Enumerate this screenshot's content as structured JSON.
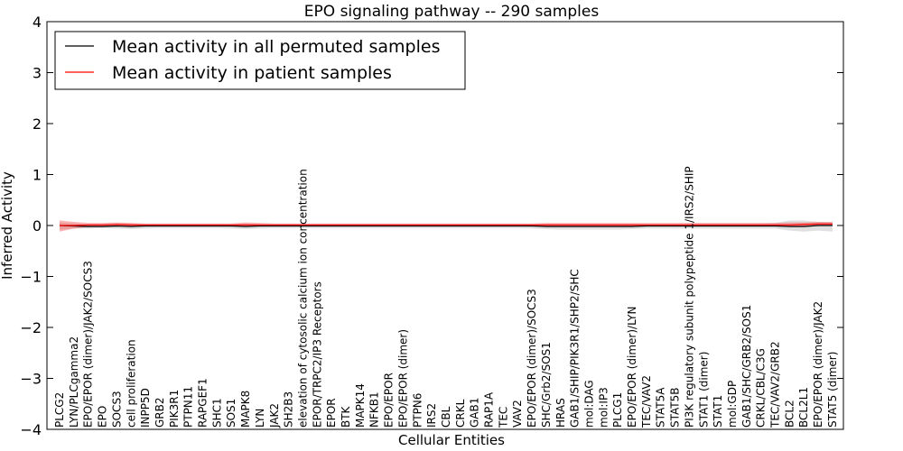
{
  "chart_data": {
    "type": "line",
    "title": "EPO signaling pathway -- 290 samples",
    "xlabel": "Cellular Entities",
    "ylabel": "Inferred Activity",
    "ylim": [
      -4,
      4
    ],
    "yticks": [
      -4,
      -3,
      -2,
      -1,
      0,
      1,
      2,
      3,
      4
    ],
    "ytick_labels": [
      "−4",
      "−3",
      "−2",
      "−1",
      "0",
      "1",
      "2",
      "3",
      "4"
    ],
    "legend_position": "top-left",
    "categories": [
      "PLCG2",
      "LYN/PLCgamma2",
      "EPO/EPOR (dimer)/JAK2/SOCS3",
      "EPO",
      "SOCS3",
      "cell proliferation",
      "INPP5D",
      "GRB2",
      "PIK3R1",
      "PTPN11",
      "RAPGEF1",
      "SHC1",
      "SOS1",
      "MAPK8",
      "LYN",
      "JAK2",
      "SH2B3",
      "elevation of cytosolic calcium ion concentration",
      "EPOR/TRPC2/IP3 Receptors",
      "EPOR",
      "BTK",
      "MAPK14",
      "NFKB1",
      "EPO/EPOR",
      "EPO/EPOR (dimer)",
      "PTPN6",
      "IRS2",
      "CBL",
      "CRKL",
      "GAB1",
      "RAP1A",
      "TEC",
      "VAV2",
      "EPO/EPOR (dimer)/SOCS3",
      "SHC/Grb2/SOS1",
      "HRAS",
      "GAB1/SHIP/PIK3R1/SHP2/SHC",
      "mol:DAG",
      "mol:IP3",
      "PLCG1",
      "EPO/EPOR (dimer)/LYN",
      "TEC/VAV2",
      "STAT5A",
      "STAT5B",
      "PI3K regulatory subunit polypeptide 1/IRS2/SHIP",
      "STAT1 (dimer)",
      "STAT1",
      "mol:GDP",
      "GAB1/SHC/GRB2/SOS1",
      "CRKL/CBL/C3G",
      "TEC/VAV2/GRB2",
      "BCL2",
      "BCL2L1",
      "EPO/EPOR (dimer)/JAK2",
      "STAT5 (dimer)"
    ],
    "series": [
      {
        "name": "Mean activity in all permuted samples",
        "color": "#000000",
        "values": [
          0,
          -0.01,
          -0.02,
          -0.02,
          -0.01,
          -0.02,
          -0.01,
          -0.01,
          -0.01,
          -0.01,
          -0.01,
          -0.01,
          -0.01,
          -0.02,
          -0.01,
          -0.01,
          -0.01,
          -0.01,
          -0.01,
          -0.01,
          -0.01,
          -0.01,
          -0.01,
          -0.01,
          -0.01,
          -0.01,
          -0.01,
          -0.01,
          -0.01,
          -0.01,
          -0.01,
          -0.01,
          -0.01,
          -0.01,
          -0.02,
          -0.02,
          -0.02,
          -0.02,
          -0.02,
          -0.02,
          -0.02,
          -0.01,
          -0.01,
          -0.01,
          -0.01,
          -0.01,
          -0.01,
          -0.01,
          -0.01,
          -0.01,
          -0.01,
          -0.02,
          -0.02,
          0,
          0
        ],
        "lower": [
          -0.08,
          -0.06,
          -0.06,
          -0.05,
          -0.06,
          -0.07,
          -0.06,
          -0.05,
          -0.05,
          -0.05,
          -0.05,
          -0.05,
          -0.06,
          -0.07,
          -0.06,
          -0.05,
          -0.05,
          -0.05,
          -0.05,
          -0.05,
          -0.05,
          -0.05,
          -0.05,
          -0.05,
          -0.05,
          -0.05,
          -0.05,
          -0.05,
          -0.05,
          -0.05,
          -0.05,
          -0.05,
          -0.05,
          -0.06,
          -0.07,
          -0.08,
          -0.08,
          -0.08,
          -0.08,
          -0.08,
          -0.07,
          -0.06,
          -0.06,
          -0.06,
          -0.06,
          -0.06,
          -0.06,
          -0.06,
          -0.06,
          -0.06,
          -0.06,
          -0.1,
          -0.12,
          -0.1,
          -0.12
        ],
        "upper": [
          0.06,
          0.04,
          0.03,
          0.03,
          0.04,
          0.04,
          0.03,
          0.03,
          0.03,
          0.03,
          0.03,
          0.03,
          0.03,
          0.04,
          0.03,
          0.03,
          0.03,
          0.03,
          0.03,
          0.03,
          0.03,
          0.03,
          0.03,
          0.03,
          0.03,
          0.03,
          0.03,
          0.03,
          0.03,
          0.03,
          0.03,
          0.03,
          0.03,
          0.03,
          0.03,
          0.03,
          0.03,
          0.03,
          0.03,
          0.03,
          0.03,
          0.03,
          0.03,
          0.03,
          0.04,
          0.04,
          0.04,
          0.04,
          0.04,
          0.04,
          0.05,
          0.1,
          0.1,
          0.07,
          0.06
        ]
      },
      {
        "name": "Mean activity in patient samples",
        "color": "#ff0000",
        "values": [
          0,
          0,
          0.01,
          0.01,
          0.02,
          0.01,
          0.01,
          0.01,
          0.01,
          0.01,
          0.01,
          0.01,
          0.01,
          0.01,
          0.01,
          0.01,
          0.01,
          0.01,
          0.01,
          0.01,
          0.01,
          0.01,
          0.01,
          0.01,
          0.01,
          0.01,
          0.01,
          0.01,
          0.01,
          0.01,
          0.01,
          0.01,
          0.01,
          0.01,
          0.01,
          0.01,
          0.01,
          0.01,
          0.01,
          0.01,
          0.01,
          0.01,
          0.01,
          0.01,
          0.01,
          0.01,
          0.01,
          0.01,
          0.01,
          0.01,
          0.01,
          0.01,
          0.02,
          0.03,
          0.03
        ],
        "lower": [
          -0.12,
          -0.06,
          -0.03,
          -0.02,
          -0.02,
          -0.02,
          -0.02,
          -0.02,
          -0.02,
          -0.02,
          -0.02,
          -0.02,
          -0.02,
          -0.02,
          -0.02,
          -0.02,
          -0.02,
          -0.02,
          -0.02,
          -0.02,
          -0.02,
          -0.02,
          -0.02,
          -0.02,
          -0.02,
          -0.02,
          -0.02,
          -0.02,
          -0.02,
          -0.02,
          -0.02,
          -0.02,
          -0.02,
          -0.02,
          -0.02,
          -0.02,
          -0.02,
          -0.02,
          -0.02,
          -0.02,
          -0.02,
          -0.02,
          -0.02,
          -0.02,
          -0.02,
          -0.02,
          -0.02,
          -0.02,
          -0.02,
          -0.02,
          -0.02,
          -0.02,
          -0.02,
          -0.01,
          -0.01
        ],
        "upper": [
          0.1,
          0.07,
          0.05,
          0.05,
          0.06,
          0.05,
          0.04,
          0.04,
          0.04,
          0.04,
          0.04,
          0.04,
          0.04,
          0.06,
          0.05,
          0.04,
          0.04,
          0.04,
          0.04,
          0.04,
          0.04,
          0.04,
          0.04,
          0.04,
          0.04,
          0.04,
          0.04,
          0.04,
          0.04,
          0.04,
          0.04,
          0.04,
          0.04,
          0.04,
          0.05,
          0.05,
          0.05,
          0.05,
          0.05,
          0.05,
          0.05,
          0.05,
          0.05,
          0.05,
          0.05,
          0.05,
          0.05,
          0.05,
          0.05,
          0.05,
          0.05,
          0.06,
          0.06,
          0.07,
          0.07
        ]
      }
    ]
  }
}
